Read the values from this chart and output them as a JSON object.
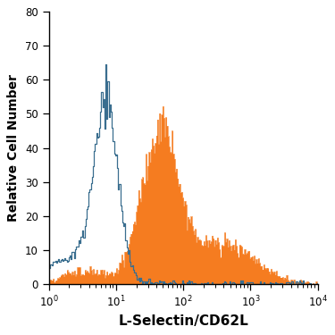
{
  "title": "",
  "xlabel": "L-Selectin/CD62L",
  "ylabel": "Relative Cell Number",
  "xlim_log": [
    1,
    10000
  ],
  "ylim": [
    0,
    80
  ],
  "yticks": [
    0,
    10,
    20,
    30,
    40,
    50,
    60,
    70,
    80
  ],
  "blue_color": "#3a6e8f",
  "orange_color": "#f57c20",
  "background_color": "#ffffff",
  "linewidth_blue": 0.9,
  "linewidth_orange": 0.4,
  "blue_peak_log": 0.85,
  "blue_sigma_log": 0.18,
  "blue_max": 53,
  "orange_peak1_log": 1.65,
  "orange_sigma1_log": 0.28,
  "orange_peak2_log": 2.6,
  "orange_sigma2_log": 0.45,
  "orange_max": 45
}
